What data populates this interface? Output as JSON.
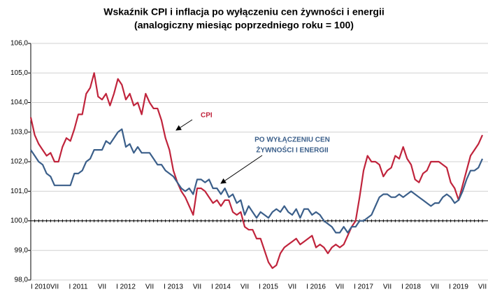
{
  "chart_data": {
    "type": "line",
    "title": "Wskaźnik CPI i inflacja po wyłączeniu cen żywności i energii",
    "subtitle": "(analogiczny miesiąc poprzedniego roku = 100)",
    "categories": [
      "I 2010",
      null,
      null,
      null,
      null,
      null,
      "VII",
      null,
      null,
      null,
      null,
      null,
      "I 2011",
      null,
      null,
      null,
      null,
      null,
      "VII",
      null,
      null,
      null,
      null,
      null,
      "I 2012",
      null,
      null,
      null,
      null,
      null,
      "VII",
      null,
      null,
      null,
      null,
      null,
      "I 2013",
      null,
      null,
      null,
      null,
      null,
      "VII",
      null,
      null,
      null,
      null,
      null,
      "I 2014",
      null,
      null,
      null,
      null,
      null,
      "VII",
      null,
      null,
      null,
      null,
      null,
      "I 2015",
      null,
      null,
      null,
      null,
      null,
      "VII",
      null,
      null,
      null,
      null,
      null,
      "I 2016",
      null,
      null,
      null,
      null,
      null,
      "VII",
      null,
      null,
      null,
      null,
      null,
      "I 2017",
      null,
      null,
      null,
      null,
      null,
      "VII",
      null,
      null,
      null,
      null,
      null,
      "I 2018",
      null,
      null,
      null,
      null,
      null,
      "VII",
      null,
      null,
      null,
      null,
      null,
      "I 2019",
      null,
      null,
      null,
      null,
      null,
      "VII"
    ],
    "series": [
      {
        "color": "#c0243c",
        "values": [
          103.5,
          102.9,
          102.6,
          102.4,
          102.2,
          102.3,
          102.0,
          102.0,
          102.5,
          102.8,
          102.7,
          103.1,
          103.6,
          103.6,
          104.3,
          104.5,
          105.0,
          104.2,
          104.1,
          104.3,
          103.9,
          104.3,
          104.8,
          104.6,
          104.1,
          104.3,
          103.9,
          104.0,
          103.6,
          104.3,
          104.0,
          103.8,
          103.8,
          103.4,
          102.8,
          102.4,
          101.7,
          101.3,
          101.0,
          100.8,
          100.5,
          100.2,
          101.1,
          101.1,
          101.0,
          100.8,
          100.6,
          100.7,
          100.5,
          100.7,
          100.7,
          100.3,
          100.2,
          100.3,
          99.8,
          99.7,
          99.7,
          99.4,
          99.4,
          99.0,
          98.6,
          98.4,
          98.5,
          98.9,
          99.1,
          99.2,
          99.3,
          99.4,
          99.2,
          99.3,
          99.4,
          99.5,
          99.1,
          99.2,
          99.1,
          98.9,
          99.1,
          99.2,
          99.1,
          99.2,
          99.5,
          99.8,
          100.0,
          100.8,
          101.7,
          102.2,
          102.0,
          102.0,
          101.9,
          101.5,
          101.7,
          101.8,
          102.2,
          102.1,
          102.5,
          102.1,
          101.9,
          101.4,
          101.3,
          101.6,
          101.7,
          102.0,
          102.0,
          102.0,
          101.9,
          101.8,
          101.3,
          101.1,
          100.7,
          101.2,
          101.7,
          102.2,
          102.4,
          102.6,
          102.9
        ]
      },
      {
        "color": "#3b5f8a",
        "values": [
          102.4,
          102.2,
          102.0,
          101.9,
          101.6,
          101.5,
          101.2,
          101.2,
          101.2,
          101.2,
          101.2,
          101.6,
          101.6,
          101.7,
          102.0,
          102.1,
          102.4,
          102.4,
          102.4,
          102.7,
          102.6,
          102.8,
          103.0,
          103.1,
          102.5,
          102.6,
          102.3,
          102.5,
          102.3,
          102.3,
          102.3,
          102.1,
          101.9,
          101.9,
          101.7,
          101.6,
          101.5,
          101.3,
          101.1,
          101.0,
          101.1,
          100.9,
          101.4,
          101.4,
          101.3,
          101.4,
          101.1,
          101.1,
          100.9,
          101.1,
          100.8,
          100.9,
          100.6,
          100.7,
          100.2,
          100.5,
          100.3,
          100.1,
          100.3,
          100.2,
          100.1,
          100.3,
          100.4,
          100.3,
          100.5,
          100.3,
          100.2,
          100.4,
          100.1,
          100.4,
          100.4,
          100.2,
          100.3,
          100.2,
          100.0,
          99.9,
          99.8,
          99.6,
          99.6,
          99.8,
          99.6,
          99.8,
          99.8,
          100.0,
          100.0,
          100.1,
          100.2,
          100.5,
          100.8,
          100.9,
          100.9,
          100.8,
          100.8,
          100.9,
          100.8,
          100.9,
          101.0,
          100.9,
          100.8,
          100.7,
          100.6,
          100.5,
          100.6,
          100.6,
          100.8,
          100.9,
          100.8,
          100.6,
          100.7,
          101.0,
          101.4,
          101.7,
          101.7,
          101.8,
          102.1
        ]
      }
    ],
    "annotations": [
      "CPI",
      "PO WYŁĄCZENIU CEN",
      "ŻYWNOŚCI I ENERGII"
    ],
    "ylim": [
      98,
      106
    ],
    "yticks": [
      {
        "value": 98,
        "label": "98,0"
      },
      {
        "value": 99,
        "label": "99,0"
      },
      {
        "value": 100,
        "label": "100,0"
      },
      {
        "value": 101,
        "label": "101,0"
      },
      {
        "value": 102,
        "label": "102,0"
      },
      {
        "value": 103,
        "label": "103,0"
      },
      {
        "value": 104,
        "label": "104,0"
      },
      {
        "value": 105,
        "label": "105,0"
      },
      {
        "value": 106,
        "label": "106,0"
      }
    ],
    "baseline": 100,
    "grid": true
  }
}
